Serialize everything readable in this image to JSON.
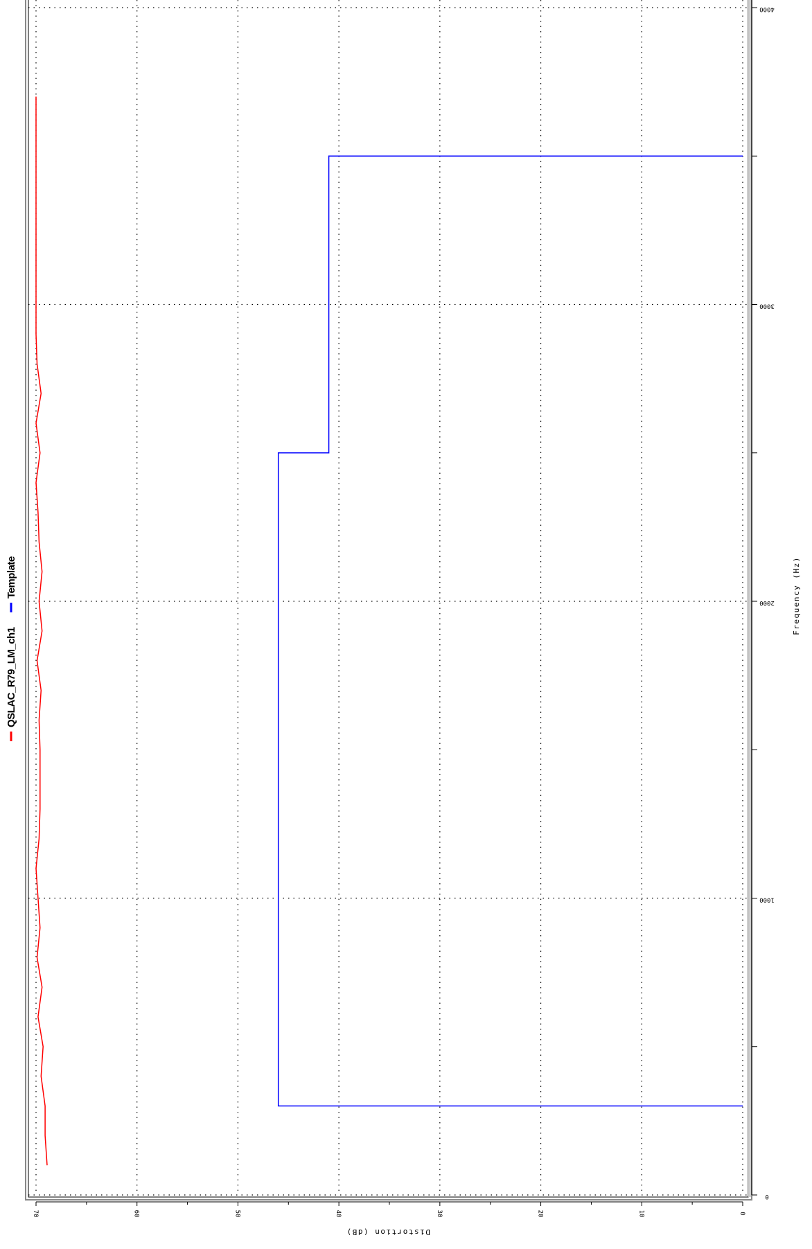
{
  "chart_data": {
    "type": "line",
    "title": "",
    "xlabel": "Frequency (Hz)",
    "ylabel": "Distortion (dB)",
    "xlim": [
      0,
      4000
    ],
    "ylim": [
      0,
      70
    ],
    "x_ticks": [
      0,
      1000,
      2000,
      3000,
      4000
    ],
    "x_ticks_labels": [
      "0",
      "1000",
      "2000",
      "3000",
      "4000"
    ],
    "x_minor_ticks": [
      500,
      1500,
      2500,
      3500
    ],
    "y_ticks": [
      0,
      10,
      20,
      30,
      40,
      50,
      60,
      70
    ],
    "y_ticks_labels": [
      "0",
      "10",
      "20",
      "30",
      "40",
      "50",
      "60",
      "70"
    ],
    "y_minor_ticks": [
      5,
      15,
      25,
      35,
      45,
      55,
      65
    ],
    "grid": true,
    "legend_position": "top",
    "orientation": "rotated 90° clockwise",
    "series": [
      {
        "name": "QSLAC_R79_LM_ch1",
        "color": "#ff0000",
        "x": [
          100,
          200,
          300,
          400,
          500,
          600,
          700,
          800,
          900,
          1000,
          1100,
          1200,
          1300,
          1400,
          1500,
          1600,
          1700,
          1800,
          1900,
          2000,
          2100,
          2200,
          2300,
          2400,
          2500,
          2600,
          2700,
          2800,
          2900,
          3000,
          3100,
          3200,
          3300,
          3400,
          3500,
          3600,
          3700
        ],
        "values": [
          68.9,
          69.1,
          69.1,
          69.5,
          69.3,
          69.8,
          69.4,
          69.9,
          69.6,
          69.8,
          70.0,
          69.7,
          69.6,
          69.6,
          69.6,
          69.7,
          69.5,
          69.9,
          69.4,
          69.7,
          69.4,
          69.7,
          69.8,
          70.0,
          69.6,
          70.0,
          69.5,
          69.9,
          70.0,
          70.0,
          70.0,
          70.0,
          70.0,
          70.0,
          70.0,
          70.0,
          70.0
        ]
      },
      {
        "name": "Template",
        "color": "#0000ff",
        "x": [
          300,
          300,
          2500,
          2500,
          3500,
          3500
        ],
        "values": [
          0,
          46,
          46,
          41,
          41,
          0
        ]
      }
    ]
  }
}
